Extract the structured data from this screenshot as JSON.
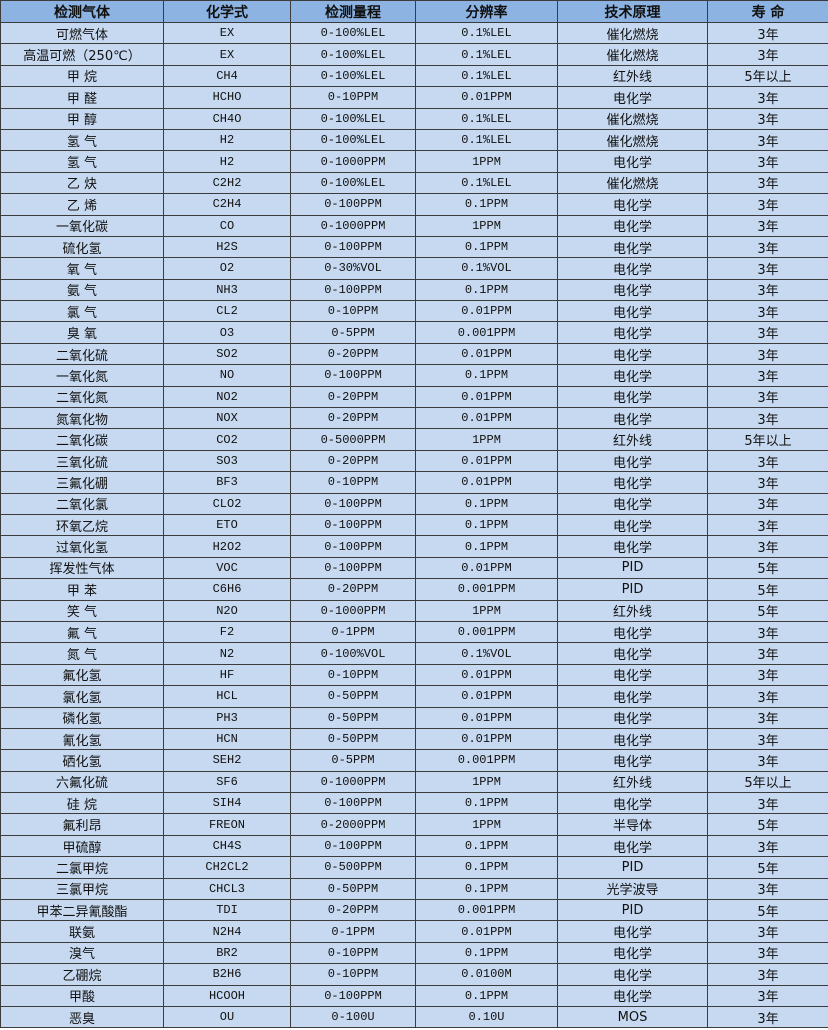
{
  "headers": [
    "检测气体",
    "化学式",
    "检测量程",
    "分辨率",
    "技术原理",
    "寿 命"
  ],
  "rows": [
    [
      "可燃气体",
      "EX",
      "0-100%LEL",
      "0.1%LEL",
      "催化燃烧",
      "3年"
    ],
    [
      "高温可燃（250℃）",
      "EX",
      "0-100%LEL",
      "0.1%LEL",
      "催化燃烧",
      "3年"
    ],
    [
      "甲 烷",
      "CH4",
      "0-100%LEL",
      "0.1%LEL",
      "红外线",
      "5年以上"
    ],
    [
      "甲 醛",
      "HCHO",
      "0-10PPM",
      "0.01PPM",
      "电化学",
      "3年"
    ],
    [
      "甲 醇",
      "CH4O",
      "0-100%LEL",
      "0.1%LEL",
      "催化燃烧",
      "3年"
    ],
    [
      "氢 气",
      "H2",
      "0-100%LEL",
      "0.1%LEL",
      "催化燃烧",
      "3年"
    ],
    [
      "氢 气",
      "H2",
      "0-1000PPM",
      "1PPM",
      "电化学",
      "3年"
    ],
    [
      "乙 炔",
      "C2H2",
      "0-100%LEL",
      "0.1%LEL",
      "催化燃烧",
      "3年"
    ],
    [
      "乙 烯",
      "C2H4",
      "0-100PPM",
      "0.1PPM",
      "电化学",
      "3年"
    ],
    [
      "一氧化碳",
      "CO",
      "0-1000PPM",
      "1PPM",
      "电化学",
      "3年"
    ],
    [
      "硫化氢",
      "H2S",
      "0-100PPM",
      "0.1PPM",
      "电化学",
      "3年"
    ],
    [
      "氧 气",
      "O2",
      "0-30%VOL",
      "0.1%VOL",
      "电化学",
      "3年"
    ],
    [
      "氨 气",
      "NH3",
      "0-100PPM",
      "0.1PPM",
      "电化学",
      "3年"
    ],
    [
      "氯 气",
      "CL2",
      "0-10PPM",
      "0.01PPM",
      "电化学",
      "3年"
    ],
    [
      "臭 氧",
      "O3",
      "0-5PPM",
      "0.001PPM",
      "电化学",
      "3年"
    ],
    [
      "二氧化硫",
      "SO2",
      "0-20PPM",
      "0.01PPM",
      "电化学",
      "3年"
    ],
    [
      "一氧化氮",
      "NO",
      "0-100PPM",
      "0.1PPM",
      "电化学",
      "3年"
    ],
    [
      "二氧化氮",
      "NO2",
      "0-20PPM",
      "0.01PPM",
      "电化学",
      "3年"
    ],
    [
      "氮氧化物",
      "NOX",
      "0-20PPM",
      "0.01PPM",
      "电化学",
      "3年"
    ],
    [
      "二氧化碳",
      "CO2",
      "0-5000PPM",
      "1PPM",
      "红外线",
      "5年以上"
    ],
    [
      "三氧化硫",
      "SO3",
      "0-20PPM",
      "0.01PPM",
      "电化学",
      "3年"
    ],
    [
      "三氟化硼",
      "BF3",
      "0-10PPM",
      "0.01PPM",
      "电化学",
      "3年"
    ],
    [
      "二氧化氯",
      "CLO2",
      "0-100PPM",
      "0.1PPM",
      "电化学",
      "3年"
    ],
    [
      "环氧乙烷",
      "ETO",
      "0-100PPM",
      "0.1PPM",
      "电化学",
      "3年"
    ],
    [
      "过氧化氢",
      "H2O2",
      "0-100PPM",
      "0.1PPM",
      "电化学",
      "3年"
    ],
    [
      "挥发性气体",
      "VOC",
      "0-100PPM",
      "0.01PPM",
      "PID",
      "5年"
    ],
    [
      "甲 苯",
      "C6H6",
      "0-20PPM",
      "0.001PPM",
      "PID",
      "5年"
    ],
    [
      "笑 气",
      "N2O",
      "0-1000PPM",
      "1PPM",
      "红外线",
      "5年"
    ],
    [
      "氟 气",
      "F2",
      "0-1PPM",
      "0.001PPM",
      "电化学",
      "3年"
    ],
    [
      "氮 气",
      "N2",
      "0-100%VOL",
      "0.1%VOL",
      "电化学",
      "3年"
    ],
    [
      "氟化氢",
      "HF",
      "0-10PPM",
      "0.01PPM",
      "电化学",
      "3年"
    ],
    [
      "氯化氢",
      "HCL",
      "0-50PPM",
      "0.01PPM",
      "电化学",
      "3年"
    ],
    [
      "磷化氢",
      "PH3",
      "0-50PPM",
      "0.01PPM",
      "电化学",
      "3年"
    ],
    [
      "氰化氢",
      "HCN",
      "0-50PPM",
      "0.01PPM",
      "电化学",
      "3年"
    ],
    [
      "硒化氢",
      "SEH2",
      "0-5PPM",
      "0.001PPM",
      "电化学",
      "3年"
    ],
    [
      "六氟化硫",
      "SF6",
      "0-1000PPM",
      "1PPM",
      "红外线",
      "5年以上"
    ],
    [
      "硅 烷",
      "SIH4",
      "0-100PPM",
      "0.1PPM",
      "电化学",
      "3年"
    ],
    [
      "氟利昂",
      "FREON",
      "0-2000PPM",
      "1PPM",
      "半导体",
      "5年"
    ],
    [
      "甲硫醇",
      "CH4S",
      "0-100PPM",
      "0.1PPM",
      "电化学",
      "3年"
    ],
    [
      "二氯甲烷",
      "CH2CL2",
      "0-500PPM",
      "0.1PPM",
      "PID",
      "5年"
    ],
    [
      "三氯甲烷",
      "CHCL3",
      "0-50PPM",
      "0.1PPM",
      "光学波导",
      "3年"
    ],
    [
      "甲苯二异氰酸酯",
      "TDI",
      "0-20PPM",
      "0.001PPM",
      "PID",
      "5年"
    ],
    [
      "联氨",
      "N2H4",
      "0-1PPM",
      "0.01PPM",
      "电化学",
      "3年"
    ],
    [
      "溴气",
      "BR2",
      "0-10PPM",
      "0.1PPM",
      "电化学",
      "3年"
    ],
    [
      "乙硼烷",
      "B2H6",
      "0-10PPM",
      "0.0100M",
      "电化学",
      "3年"
    ],
    [
      "甲酸",
      "HCOOH",
      "0-100PPM",
      "0.1PPM",
      "电化学",
      "3年"
    ],
    [
      "恶臭",
      "OU",
      "0-100U",
      "0.10U",
      "MOS",
      "3年"
    ]
  ]
}
